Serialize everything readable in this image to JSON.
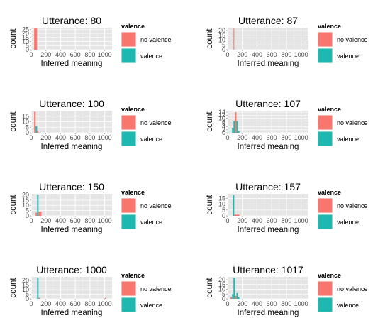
{
  "colors": {
    "no_valence": "#F8766D",
    "valence": "#1FB8B1",
    "panel_bg": "#E5E5E5",
    "grid": "#FFFFFF"
  },
  "chart_data": [
    {
      "type": "bar",
      "title": "Utterance: 80",
      "xlabel": "Inferred meaning",
      "ylabel": "count",
      "xlim": [
        0,
        1100
      ],
      "ylim": [
        0,
        27
      ],
      "xticks": [
        "0",
        "200",
        "400",
        "600",
        "800",
        "1000"
      ],
      "yticks": [
        "0",
        "5",
        "10",
        "15",
        "20",
        "25"
      ],
      "ytick_values": [
        0,
        5,
        10,
        15,
        20,
        25
      ],
      "legend": {
        "title": "valence",
        "position": "right",
        "labels": [
          "no valence",
          "valence"
        ]
      },
      "bars": [
        {
          "x0": 40,
          "x1": 80,
          "value": 26,
          "series": "no valence"
        }
      ]
    },
    {
      "type": "bar",
      "title": "Utterance: 87",
      "xlabel": "Inferred meaning",
      "ylabel": "count",
      "xlim": [
        0,
        1100
      ],
      "ylim": [
        0,
        23
      ],
      "xticks": [
        "0",
        "200",
        "400",
        "600",
        "800",
        "1000"
      ],
      "yticks": [
        "0",
        "5",
        "10",
        "15",
        "20"
      ],
      "ytick_values": [
        0,
        5,
        10,
        15,
        20
      ],
      "legend": {
        "title": "valence",
        "position": "right",
        "labels": [
          "no valence",
          "valence"
        ]
      },
      "bars": [
        {
          "x0": 80,
          "x1": 90,
          "value": 22,
          "series": "no valence"
        }
      ]
    },
    {
      "type": "bar",
      "title": "Utterance: 100",
      "xlabel": "Inferred meaning",
      "ylabel": "count",
      "xlim": [
        0,
        1100
      ],
      "ylim": [
        0,
        20
      ],
      "xticks": [
        "0",
        "200",
        "400",
        "600",
        "800",
        "1000"
      ],
      "yticks": [
        "0",
        "5",
        "10",
        "15"
      ],
      "ytick_values": [
        0,
        5,
        10,
        15
      ],
      "legend": {
        "title": "valence",
        "position": "right",
        "labels": [
          "no valence",
          "valence"
        ]
      },
      "bars": [
        {
          "x0": 40,
          "x1": 60,
          "value": 19,
          "series": "no valence"
        },
        {
          "x0": 60,
          "x1": 80,
          "value": 6,
          "series": "valence"
        },
        {
          "x0": 80,
          "x1": 100,
          "value": 2,
          "series": "no valence"
        }
      ]
    },
    {
      "type": "bar",
      "title": "Utterance: 107",
      "xlabel": "Inferred meaning",
      "ylabel": "count",
      "xlim": [
        0,
        1100
      ],
      "ylim": [
        0,
        15
      ],
      "xticks": [
        "0",
        "200",
        "400",
        "600",
        "800",
        "1000"
      ],
      "yticks": [
        "0",
        "2",
        "4",
        "6",
        "8",
        "10",
        "12",
        "14"
      ],
      "ytick_values": [
        0,
        2,
        4,
        6,
        8,
        10,
        12,
        14
      ],
      "legend": {
        "title": "valence",
        "position": "right",
        "labels": [
          "no valence",
          "valence"
        ]
      },
      "bars": [
        {
          "x0": 60,
          "x1": 80,
          "value": 3,
          "series": "valence"
        },
        {
          "x0": 80,
          "x1": 100,
          "value": 8,
          "series": "valence"
        },
        {
          "x0": 100,
          "x1": 120,
          "value": 14,
          "series": "no valence"
        },
        {
          "x0": 120,
          "x1": 140,
          "value": 8,
          "series": "valence"
        },
        {
          "x0": 140,
          "x1": 160,
          "value": 1,
          "series": "valence"
        }
      ]
    },
    {
      "type": "bar",
      "title": "Utterance: 150",
      "xlabel": "Inferred meaning",
      "ylabel": "count",
      "xlim": [
        0,
        1100
      ],
      "ylim": [
        0,
        21
      ],
      "xticks": [
        "0",
        "200",
        "400",
        "600",
        "800",
        "1000"
      ],
      "yticks": [
        "0",
        "5",
        "10",
        "15",
        "20"
      ],
      "ytick_values": [
        0,
        5,
        10,
        15,
        20
      ],
      "legend": {
        "title": "valence",
        "position": "right",
        "labels": [
          "no valence",
          "valence"
        ]
      },
      "bars": [
        {
          "x0": 60,
          "x1": 80,
          "value": 3,
          "series": "no valence"
        },
        {
          "x0": 80,
          "x1": 100,
          "value": 20,
          "series": "valence"
        },
        {
          "x0": 100,
          "x1": 140,
          "value": 4,
          "series": "no valence"
        }
      ]
    },
    {
      "type": "bar",
      "title": "Utterance: 157",
      "xlabel": "Inferred meaning",
      "ylabel": "count",
      "xlim": [
        0,
        1100
      ],
      "ylim": [
        0,
        19
      ],
      "xticks": [
        "0",
        "200",
        "400",
        "600",
        "800",
        "1000"
      ],
      "yticks": [
        "0",
        "5",
        "10",
        "15"
      ],
      "ytick_values": [
        0,
        5,
        10,
        15
      ],
      "legend": {
        "title": "valence",
        "position": "right",
        "labels": [
          "no valence",
          "valence"
        ]
      },
      "bars": [
        {
          "x0": 70,
          "x1": 90,
          "value": 18,
          "series": "valence"
        },
        {
          "x0": 90,
          "x1": 160,
          "value": 1,
          "series": "no valence"
        }
      ]
    },
    {
      "type": "bar",
      "title": "Utterance: 1000",
      "xlabel": "Inferred meaning",
      "ylabel": "count",
      "xlim": [
        0,
        1100
      ],
      "ylim": [
        0,
        24
      ],
      "xticks": [
        "0",
        "200",
        "400",
        "600",
        "800",
        "1000"
      ],
      "yticks": [
        "0",
        "5",
        "10",
        "15",
        "20"
      ],
      "ytick_values": [
        0,
        5,
        10,
        15,
        20
      ],
      "legend": {
        "title": "valence",
        "position": "right",
        "labels": [
          "no valence",
          "valence"
        ]
      },
      "bars": [
        {
          "x0": 80,
          "x1": 100,
          "value": 23,
          "series": "valence"
        },
        {
          "x0": 100,
          "x1": 120,
          "value": 1,
          "series": "no valence"
        },
        {
          "x0": 1000,
          "x1": 1020,
          "value": 1,
          "series": "no valence"
        }
      ]
    },
    {
      "type": "bar",
      "title": "Utterance: 1017",
      "xlabel": "Inferred meaning",
      "ylabel": "count",
      "xlim": [
        0,
        1100
      ],
      "ylim": [
        0,
        23
      ],
      "xticks": [
        "0",
        "200",
        "400",
        "600",
        "800",
        "1000"
      ],
      "yticks": [
        "0",
        "5",
        "10",
        "15",
        "20"
      ],
      "ytick_values": [
        0,
        5,
        10,
        15,
        20
      ],
      "legend": {
        "title": "valence",
        "position": "right",
        "labels": [
          "no valence",
          "valence"
        ]
      },
      "bars": [
        {
          "x0": 40,
          "x1": 60,
          "value": 2,
          "series": "no valence"
        },
        {
          "x0": 60,
          "x1": 80,
          "value": 5,
          "series": "valence"
        },
        {
          "x0": 80,
          "x1": 100,
          "value": 22,
          "series": "valence"
        },
        {
          "x0": 100,
          "x1": 120,
          "value": 3,
          "series": "no valence"
        },
        {
          "x0": 120,
          "x1": 140,
          "value": 6,
          "series": "valence"
        },
        {
          "x0": 140,
          "x1": 160,
          "value": 2,
          "series": "valence"
        }
      ]
    }
  ]
}
